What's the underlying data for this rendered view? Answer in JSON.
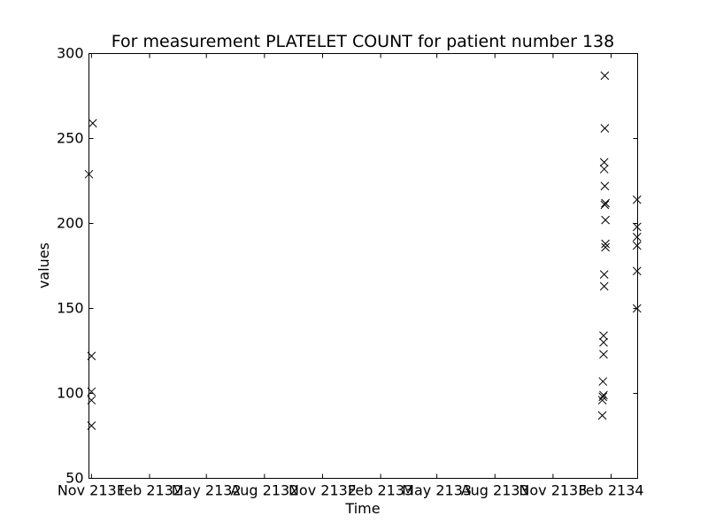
{
  "chart_data": {
    "type": "scatter",
    "title": "For measurement PLATELET COUNT for patient number 138",
    "xlabel": "Time",
    "ylabel": "values",
    "ylim": [
      50,
      300
    ],
    "yticks": [
      50,
      100,
      150,
      200,
      250,
      300
    ],
    "xlim": [
      "2131-10-28",
      "2134-03-15"
    ],
    "xticks": [
      {
        "date": "2131-11-01",
        "label": "Nov 2131"
      },
      {
        "date": "2132-02-01",
        "label": "Feb 2132"
      },
      {
        "date": "2132-05-01",
        "label": "May 2132"
      },
      {
        "date": "2132-08-01",
        "label": "Aug 2132"
      },
      {
        "date": "2132-11-01",
        "label": "Nov 2132"
      },
      {
        "date": "2133-02-01",
        "label": "Feb 2133"
      },
      {
        "date": "2133-05-01",
        "label": "May 2133"
      },
      {
        "date": "2133-08-01",
        "label": "Aug 2133"
      },
      {
        "date": "2133-11-01",
        "label": "Nov 2133"
      },
      {
        "date": "2134-02-01",
        "label": "Feb 2134"
      }
    ],
    "marker": "x",
    "grid": false,
    "series": [
      {
        "points": [
          {
            "x": "2131-10-28",
            "y": 229
          },
          {
            "x": "2131-11-01",
            "y": 122
          },
          {
            "x": "2131-11-01",
            "y": 101
          },
          {
            "x": "2131-11-01",
            "y": 96
          },
          {
            "x": "2131-11-01",
            "y": 81
          },
          {
            "x": "2131-11-03",
            "y": 259
          },
          {
            "x": "2134-01-18",
            "y": 87
          },
          {
            "x": "2134-01-18",
            "y": 96
          },
          {
            "x": "2134-01-19",
            "y": 98
          },
          {
            "x": "2134-01-19",
            "y": 107
          },
          {
            "x": "2134-01-20",
            "y": 99
          },
          {
            "x": "2134-01-20",
            "y": 123
          },
          {
            "x": "2134-01-20",
            "y": 130
          },
          {
            "x": "2134-01-20",
            "y": 134
          },
          {
            "x": "2134-01-21",
            "y": 163
          },
          {
            "x": "2134-01-21",
            "y": 170
          },
          {
            "x": "2134-01-21",
            "y": 236
          },
          {
            "x": "2134-01-21",
            "y": 232
          },
          {
            "x": "2134-01-22",
            "y": 287
          },
          {
            "x": "2134-01-22",
            "y": 256
          },
          {
            "x": "2134-01-22",
            "y": 222
          },
          {
            "x": "2134-01-22",
            "y": 211
          },
          {
            "x": "2134-01-23",
            "y": 212
          },
          {
            "x": "2134-01-23",
            "y": 202
          },
          {
            "x": "2134-01-23",
            "y": 188
          },
          {
            "x": "2134-01-23",
            "y": 186
          },
          {
            "x": "2134-03-14",
            "y": 214
          },
          {
            "x": "2134-03-14",
            "y": 198
          },
          {
            "x": "2134-03-14",
            "y": 192
          },
          {
            "x": "2134-03-14",
            "y": 187
          },
          {
            "x": "2134-03-14",
            "y": 172
          },
          {
            "x": "2134-03-14",
            "y": 150
          }
        ]
      }
    ]
  }
}
